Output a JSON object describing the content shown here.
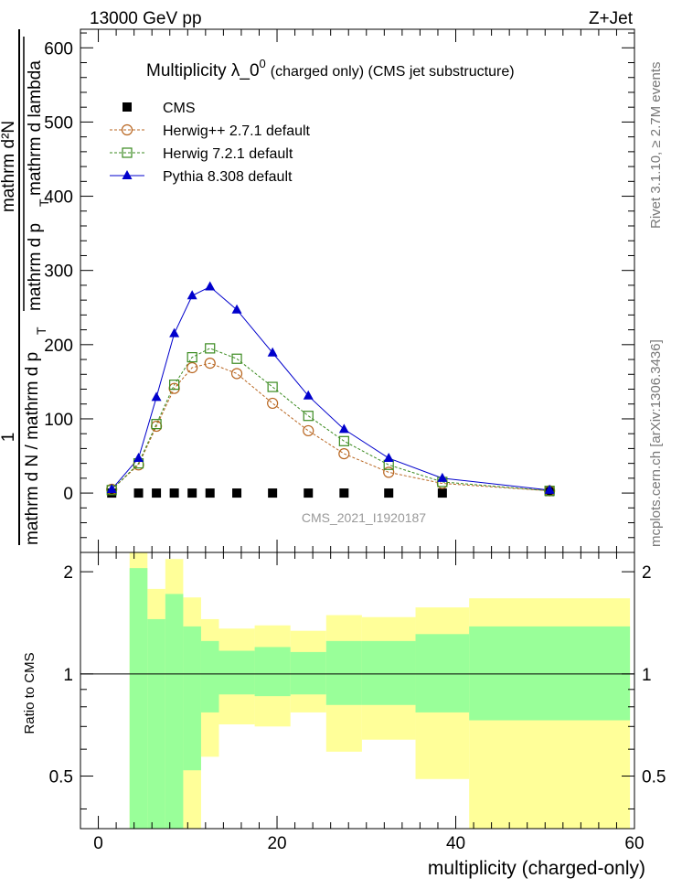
{
  "header": {
    "left": "13000 GeV pp",
    "right": "Z+Jet"
  },
  "side_labels": {
    "rivet": "Rivet 3.1.10, ≥ 2.7M events",
    "mcplots": "mcplots.cern.ch [arXiv:1306.3436]"
  },
  "watermark": "CMS_2021_I1920187",
  "colors": {
    "cms": "#000000",
    "herwigpp": "#b8651f",
    "herwig7": "#3a8a1f",
    "pythia": "#0000cc",
    "band_inner": "#99ff99",
    "band_outer": "#ffff99"
  },
  "chart_data": [
    {
      "type": "line",
      "title": "Multiplicity  λ_0",
      "title_sup": "0",
      "subtitle": "(charged only) (CMS jet substructure)",
      "ylabel": {
        "frac_num_a": "1",
        "frac_den_a": "mathrm d N / mathrm d p",
        "frac_den_a_sub": "T",
        "frac_num_b": "mathrm d²N",
        "frac_den_b_1": "mathrm d p",
        "frac_den_b_sub": "T",
        "frac_den_b_2": "mathrm d lambda"
      },
      "xlim": [
        -2,
        60
      ],
      "ylim": [
        -80,
        625
      ],
      "yticks": [
        0,
        100,
        200,
        300,
        400,
        500,
        600
      ],
      "legend_position": "top-left",
      "series": [
        {
          "name": "CMS",
          "marker": "square",
          "x": [
            1.5,
            4.5,
            6.5,
            8.5,
            10.5,
            12.5,
            15.5,
            19.5,
            23.5,
            27.5,
            32.5,
            38.5,
            50.5
          ],
          "y": [
            0,
            0,
            0,
            0,
            0,
            0,
            0,
            0,
            0,
            0,
            0,
            0,
            2
          ]
        },
        {
          "name": "Herwig++ 2.7.1 default",
          "marker": "circle",
          "x": [
            1.5,
            4.5,
            6.5,
            8.5,
            10.5,
            12.5,
            15.5,
            19.5,
            23.5,
            27.5,
            32.5,
            38.5,
            50.5
          ],
          "y": [
            5,
            38,
            90,
            141,
            169,
            175,
            161,
            121,
            84,
            53,
            28,
            13,
            3
          ]
        },
        {
          "name": "Herwig 7.2.1 default",
          "marker": "square-open",
          "x": [
            1.5,
            4.5,
            6.5,
            8.5,
            10.5,
            12.5,
            15.5,
            19.5,
            23.5,
            27.5,
            32.5,
            38.5,
            50.5
          ],
          "y": [
            4,
            40,
            93,
            146,
            183,
            195,
            181,
            143,
            104,
            70,
            38,
            15,
            3
          ]
        },
        {
          "name": "Pythia 8.308 default",
          "marker": "triangle",
          "x": [
            1.5,
            4.5,
            6.5,
            8.5,
            10.5,
            12.5,
            15.5,
            19.5,
            23.5,
            27.5,
            32.5,
            38.5,
            50.5
          ],
          "y": [
            5,
            47,
            129,
            215,
            266,
            278,
            247,
            189,
            131,
            86,
            47,
            20,
            4
          ]
        }
      ]
    },
    {
      "type": "area",
      "ylabel": "Ratio to CMS",
      "xlabel": "multiplicity (charged-only)",
      "xlim": [
        -2,
        60
      ],
      "ylim": [
        0.35,
        2.28
      ],
      "yticks": [
        0.5,
        1,
        2
      ],
      "xticks": [
        0,
        20,
        40,
        60
      ],
      "reference_line": 1,
      "bins": [
        {
          "x0": 3.5,
          "x1": 5.5,
          "inner_lo": 0.35,
          "inner_hi": 2.05,
          "outer_lo": 0.35,
          "outer_hi": 2.28
        },
        {
          "x0": 5.5,
          "x1": 7.5,
          "inner_lo": 0.35,
          "inner_hi": 1.45,
          "outer_lo": 0.35,
          "outer_hi": 1.78
        },
        {
          "x0": 7.5,
          "x1": 9.5,
          "inner_lo": 0.35,
          "inner_hi": 1.72,
          "outer_lo": 0.35,
          "outer_hi": 2.18
        },
        {
          "x0": 9.5,
          "x1": 11.5,
          "inner_lo": 0.52,
          "inner_hi": 1.38,
          "outer_lo": 0.35,
          "outer_hi": 1.68
        },
        {
          "x0": 11.5,
          "x1": 13.5,
          "inner_lo": 0.77,
          "inner_hi": 1.25,
          "outer_lo": 0.57,
          "outer_hi": 1.45
        },
        {
          "x0": 13.5,
          "x1": 17.5,
          "inner_lo": 0.87,
          "inner_hi": 1.17,
          "outer_lo": 0.71,
          "outer_hi": 1.36
        },
        {
          "x0": 17.5,
          "x1": 21.5,
          "inner_lo": 0.86,
          "inner_hi": 1.2,
          "outer_lo": 0.7,
          "outer_hi": 1.39
        },
        {
          "x0": 21.5,
          "x1": 25.5,
          "inner_lo": 0.87,
          "inner_hi": 1.16,
          "outer_lo": 0.77,
          "outer_hi": 1.34
        },
        {
          "x0": 25.5,
          "x1": 29.5,
          "inner_lo": 0.81,
          "inner_hi": 1.25,
          "outer_lo": 0.59,
          "outer_hi": 1.49
        },
        {
          "x0": 29.5,
          "x1": 35.5,
          "inner_lo": 0.81,
          "inner_hi": 1.25,
          "outer_lo": 0.64,
          "outer_hi": 1.47
        },
        {
          "x0": 35.5,
          "x1": 41.5,
          "inner_lo": 0.77,
          "inner_hi": 1.31,
          "outer_lo": 0.49,
          "outer_hi": 1.57
        },
        {
          "x0": 41.5,
          "x1": 59.5,
          "inner_lo": 0.73,
          "inner_hi": 1.38,
          "outer_lo": 0.35,
          "outer_hi": 1.67
        }
      ]
    }
  ]
}
